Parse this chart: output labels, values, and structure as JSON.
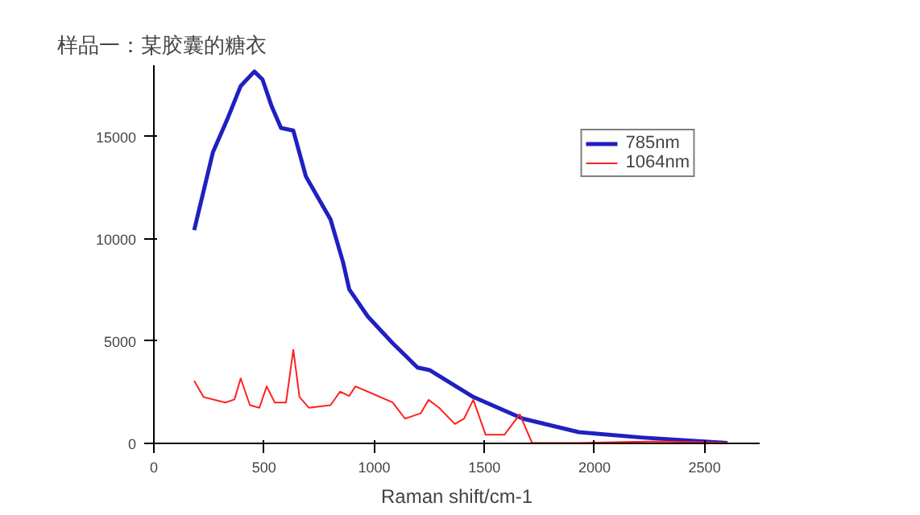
{
  "chart_data": {
    "type": "line",
    "title": "样品一：某胶囊的糖衣",
    "xlabel": "Raman shift/cm-1",
    "xlim": [
      0,
      2750
    ],
    "ylim": [
      0,
      18500
    ],
    "xticks": [
      0,
      500,
      1000,
      1500,
      2000,
      2500
    ],
    "yticks": [
      0,
      5000,
      10000,
      15000
    ],
    "grid": false,
    "legend": "top right",
    "marker": "none",
    "line_style": "solid",
    "series": [
      {
        "name": "785nm",
        "color": "#2020c0",
        "x": [
          183,
          268,
          332,
          394,
          456,
          493,
          535,
          577,
          633,
          690,
          802,
          859,
          887,
          971,
          1084,
          1197,
          1253,
          1450,
          1675,
          1928,
          2210,
          2604
        ],
        "values": [
          10430,
          14240,
          15820,
          17480,
          18190,
          17800,
          16480,
          15430,
          15300,
          13060,
          10950,
          8850,
          7530,
          6210,
          4900,
          3710,
          3580,
          2270,
          1210,
          550,
          290,
          20
        ]
      },
      {
        "name": "1064nm",
        "color": "#ff2020",
        "x": [
          183,
          225,
          324,
          366,
          394,
          436,
          479,
          512,
          549,
          600,
          633,
          661,
          704,
          802,
          845,
          887,
          915,
          999,
          1084,
          1140,
          1211,
          1247,
          1295,
          1366,
          1408,
          1450,
          1506,
          1591,
          1661,
          1717,
          1928,
          2294,
          2604
        ],
        "values": [
          3060,
          2270,
          2000,
          2150,
          3180,
          1870,
          1740,
          2790,
          2000,
          2000,
          4580,
          2270,
          1740,
          1870,
          2530,
          2320,
          2790,
          2400,
          2000,
          1210,
          1470,
          2130,
          1740,
          950,
          1210,
          2130,
          420,
          420,
          1420,
          20,
          20,
          100,
          30
        ]
      }
    ]
  }
}
